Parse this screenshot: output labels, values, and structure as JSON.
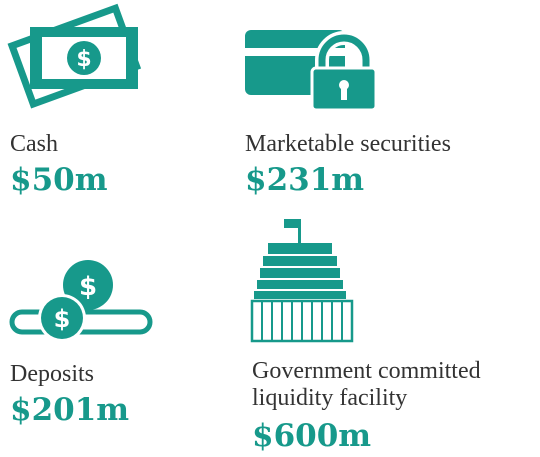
{
  "items": [
    {
      "label": "Cash",
      "value": "$50m"
    },
    {
      "label": "Marketable securities",
      "value": "$231m"
    },
    {
      "label": "Deposits",
      "value": "$201m"
    },
    {
      "label_lines": [
        "Government committed",
        "liquidity facility"
      ],
      "value": "$600m"
    }
  ]
}
